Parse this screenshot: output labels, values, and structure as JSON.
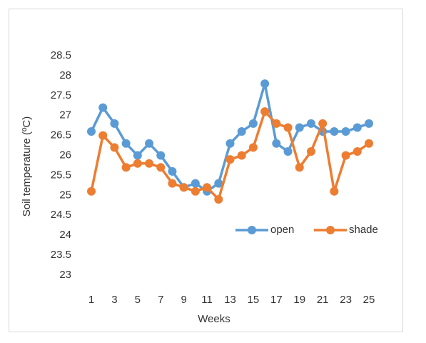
{
  "chart_data": {
    "type": "line",
    "x_label": "Weeks",
    "y_label": "Soil temperature (ºC)",
    "categories": [
      1,
      null,
      3,
      null,
      5,
      null,
      7,
      null,
      9,
      null,
      11,
      null,
      13,
      null,
      15,
      null,
      17,
      null,
      19,
      null,
      21,
      null,
      23,
      null,
      25
    ],
    "series": [
      {
        "name": "open",
        "color": "#5b9bd5",
        "values": [
          26.6,
          27.2,
          26.8,
          26.3,
          26.0,
          26.3,
          26.0,
          25.6,
          25.2,
          25.3,
          25.1,
          25.3,
          26.3,
          26.6,
          26.8,
          27.8,
          26.3,
          26.1,
          26.7,
          26.8,
          26.6,
          26.6,
          26.6,
          26.7,
          26.8
        ]
      },
      {
        "name": "shade",
        "color": "#ed7d31",
        "values": [
          25.1,
          26.5,
          26.2,
          25.7,
          25.8,
          25.8,
          25.7,
          25.3,
          25.2,
          25.1,
          25.2,
          24.9,
          25.9,
          26.0,
          26.2,
          27.1,
          26.8,
          26.7,
          25.7,
          26.1,
          26.8,
          25.1,
          26.0,
          26.1,
          26.3
        ]
      }
    ],
    "ylim": [
      23,
      28.5
    ],
    "yticks": [
      23,
      23.5,
      24,
      24.5,
      25,
      25.5,
      26,
      26.5,
      27,
      27.5,
      28,
      28.5
    ],
    "legend": "right"
  }
}
